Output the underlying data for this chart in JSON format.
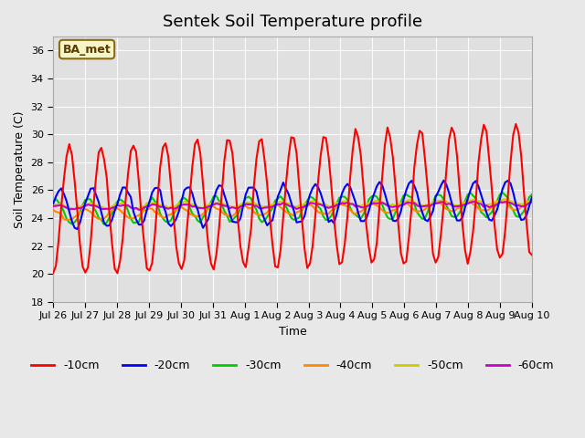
{
  "title": "Sentek Soil Temperature profile",
  "xlabel": "Time",
  "ylabel": "Soil Temperature (C)",
  "ylim": [
    18,
    37
  ],
  "yticks": [
    18,
    20,
    22,
    24,
    26,
    28,
    30,
    32,
    34,
    36
  ],
  "background_color": "#e8e8e8",
  "plot_bg_color": "#e0e0e0",
  "annotation_text": "BA_met",
  "annotation_bg": "#f5f5c8",
  "annotation_border": "#8B6914",
  "colors": {
    "-10cm": "#ff0000",
    "-20cm": "#0000ff",
    "-30cm": "#00cc00",
    "-40cm": "#ff8800",
    "-50cm": "#cccc00",
    "-60cm": "#cc00cc"
  },
  "x_tick_labels": [
    "Jul 26",
    "Jul 27",
    "Jul 28",
    "Jul 29",
    "Jul 30",
    "Jul 31",
    "Aug 1",
    "Aug 2",
    "Aug 3",
    "Aug 4",
    "Aug 5",
    "Aug 6",
    "Aug 7",
    "Aug 8",
    "Aug 9",
    "Aug 10"
  ],
  "n_days": 15,
  "start_day": 0
}
